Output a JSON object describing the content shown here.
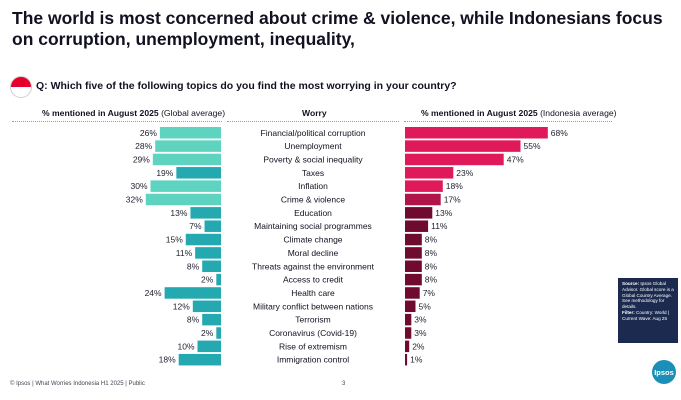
{
  "page": {
    "title": "The world is most concerned about crime & violence, while Indonesians focus on corruption, unemployment, inequality,",
    "question": "Q: Which five of the following topics do you find the most worrying in your country?",
    "footer": "© Ipsos | What Worries Indonesia H1 2025 | Public",
    "page_number": "3",
    "logo_text": "Ipsos"
  },
  "headers": {
    "global_bold": "% mentioned in August 2025",
    "global_light": "(Global average)",
    "worry": "Worry",
    "indonesia_bold": "% mentioned in August 2025",
    "indonesia_light": "(Indonesia average)"
  },
  "source_box": {
    "source_label": "Source:",
    "source_text": "Ipsos Global Advisor. Global score is a Global Country Average. See methodology for details.",
    "filter_label": "Filter:",
    "filter_text": "Country: World | Current Wave: Aug 25"
  },
  "colors": {
    "global_top": "#5dd3c0",
    "global_other": "#24a9b0",
    "indonesia_top": "#e0195a",
    "indonesia_mid": "#b01449",
    "indonesia_other": "#6e0b2e"
  },
  "chart_data": {
    "type": "bar",
    "categories": [
      "Financial/political corruption",
      "Unemployment",
      "Poverty & social inequality",
      "Taxes",
      "Inflation",
      "Crime & violence",
      "Education",
      "Maintaining social programmes",
      "Climate change",
      "Moral decline",
      "Threats against the environment",
      "Access to credit",
      "Health care",
      "Military conflict between nations",
      "Terrorism",
      "Coronavirus (Covid-19)",
      "Rise of extremism",
      "Immigration control"
    ],
    "series": [
      {
        "name": "% mentioned in August 2025 (Global average)",
        "values": [
          26,
          28,
          29,
          19,
          30,
          32,
          13,
          7,
          15,
          11,
          8,
          2,
          24,
          12,
          8,
          2,
          10,
          18
        ],
        "labels": [
          "26%",
          "28%",
          "29%",
          "19%",
          "30%",
          "32%",
          "13%",
          "7%",
          "15%",
          "11%",
          "8%",
          "2%",
          "24%",
          "12%",
          "8%",
          "2%",
          "10%",
          "18%"
        ],
        "highlight": [
          true,
          true,
          true,
          false,
          true,
          true,
          false,
          false,
          false,
          false,
          false,
          false,
          false,
          false,
          false,
          false,
          false,
          false
        ]
      },
      {
        "name": "% mentioned in August 2025 (Indonesia average)",
        "values": [
          68,
          55,
          47,
          23,
          18,
          17,
          13,
          11,
          8,
          8,
          8,
          8,
          7,
          5,
          3,
          3,
          2,
          1
        ],
        "labels": [
          "68%",
          "55%",
          "47%",
          "23%",
          "18%",
          "17%",
          "13%",
          "11%",
          "8%",
          "8%",
          "8%",
          "8%",
          "7%",
          "5%",
          "3%",
          "3%",
          "2%",
          "1%"
        ],
        "tier": [
          "top",
          "top",
          "top",
          "top",
          "top",
          "mid",
          "other",
          "other",
          "other",
          "other",
          "other",
          "other",
          "other",
          "other",
          "other",
          "other",
          "other",
          "other"
        ]
      }
    ],
    "xlim": [
      0,
      70
    ]
  }
}
